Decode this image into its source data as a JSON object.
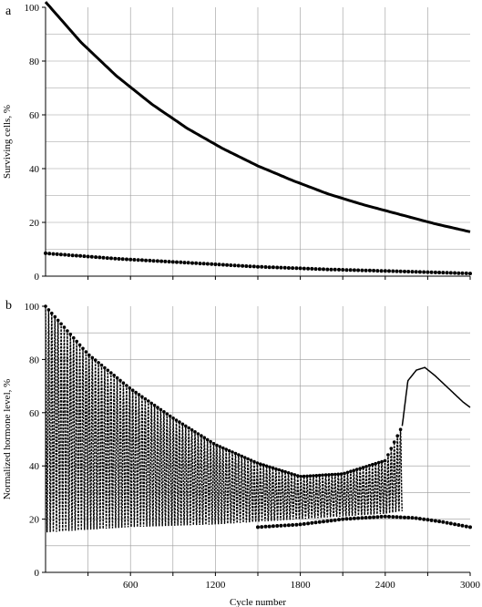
{
  "chart_data": [
    {
      "type": "line",
      "panel_label": "a",
      "ylabel": "Surviving cells, %",
      "xlabel": "",
      "xlim": [
        0,
        3000
      ],
      "ylim": [
        0,
        100
      ],
      "y_ticks": [
        "0",
        "20",
        "40",
        "60",
        "80",
        "100"
      ],
      "x_tick_labels_shown": false,
      "grid": true,
      "series": [
        {
          "style": "solid-thick",
          "x": [
            0,
            250,
            500,
            750,
            1000,
            1250,
            1500,
            1750,
            2000,
            2250,
            2500,
            2750,
            3000
          ],
          "values": [
            102,
            87,
            74.5,
            64,
            55,
            47.5,
            41,
            35.5,
            30.5,
            26.5,
            23,
            19.5,
            16.5
          ]
        },
        {
          "style": "dotted",
          "x": [
            0,
            500,
            1000,
            1500,
            2000,
            2500,
            3000
          ],
          "values": [
            8.5,
            6.5,
            5,
            3.5,
            2.5,
            1.8,
            1
          ]
        }
      ]
    },
    {
      "type": "line",
      "panel_label": "b",
      "ylabel": "Normalized hormone level, %",
      "xlabel": "Cycle number",
      "xlim": [
        0,
        3000
      ],
      "ylim": [
        0,
        100
      ],
      "y_ticks": [
        "0",
        "20",
        "40",
        "60",
        "80",
        "100"
      ],
      "x_ticks": [
        "600",
        "1200",
        "1800",
        "2400",
        "3000"
      ],
      "grid": true,
      "series": [
        {
          "style": "oscillating-envelope",
          "x": [
            0,
            300,
            600,
            900,
            1200,
            1500,
            1800,
            2100,
            2400,
            2520
          ],
          "upper": [
            100,
            82,
            69,
            58,
            48,
            41,
            36,
            37,
            42,
            55
          ],
          "lower": [
            15,
            16,
            17,
            17.5,
            18,
            19,
            20,
            21,
            22,
            23
          ]
        },
        {
          "style": "solid",
          "x": [
            2520,
            2560,
            2620,
            2680,
            2750,
            2850,
            2950,
            3000
          ],
          "values": [
            55,
            72,
            76,
            77,
            74,
            69,
            64,
            62
          ]
        },
        {
          "style": "dotted",
          "x": [
            1500,
            1800,
            2100,
            2400,
            2600,
            2800,
            3000
          ],
          "values": [
            17,
            18,
            20,
            21,
            20.5,
            19,
            17
          ]
        }
      ]
    }
  ]
}
